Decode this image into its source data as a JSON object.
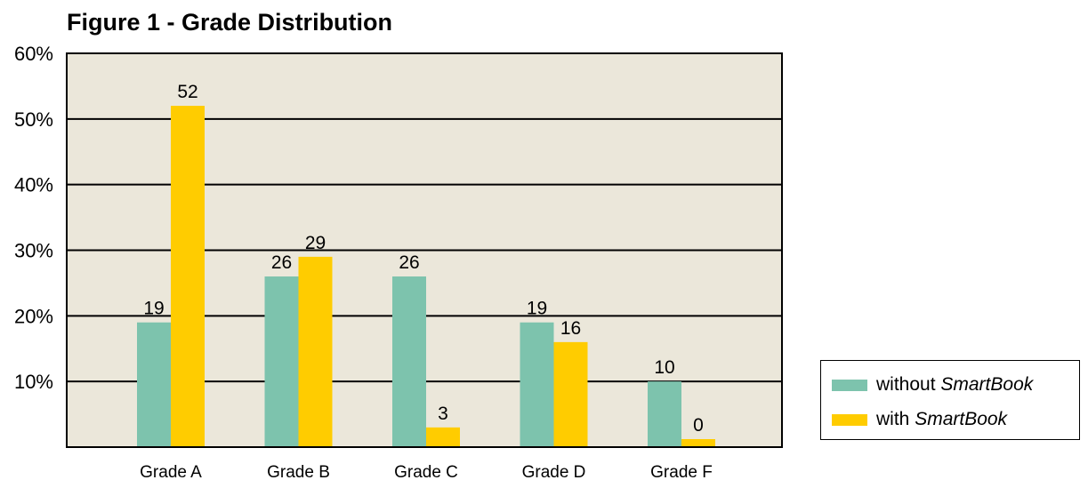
{
  "chart_data": {
    "type": "bar",
    "title": "Figure 1 - Grade Distribution",
    "xlabel": "",
    "ylabel": "",
    "categories": [
      "Grade A",
      "Grade B",
      "Grade C",
      "Grade D",
      "Grade F"
    ],
    "series": [
      {
        "name_prefix": "without ",
        "name_brand": "SmartBook",
        "color": "#7dc3ad",
        "values": [
          19,
          26,
          26,
          19,
          10
        ],
        "labels": [
          "19",
          "26",
          "26",
          "19",
          "10"
        ]
      },
      {
        "name_prefix": "with ",
        "name_brand": "SmartBook",
        "color": "#ffcc00",
        "values": [
          52,
          29,
          3,
          16,
          0
        ],
        "labels": [
          "52",
          "29",
          "3",
          "16",
          "0"
        ]
      }
    ],
    "ylim": [
      0,
      60
    ],
    "yticks": [
      10,
      20,
      30,
      40,
      50,
      60
    ],
    "ytick_labels": [
      "10%",
      "20%",
      "30%",
      "40%",
      "50%",
      "60%"
    ],
    "grid": true,
    "plot_background": "#ebe7da",
    "legend_position": "bottom-right"
  }
}
